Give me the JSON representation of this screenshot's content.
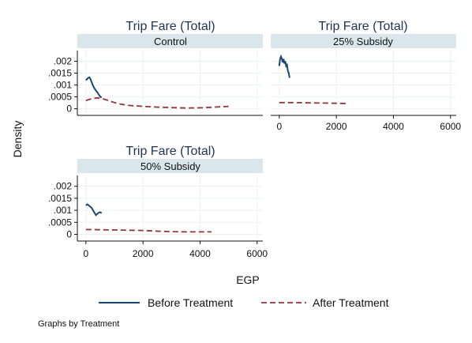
{
  "chart_data": {
    "type": "line",
    "panels": [
      {
        "title": "Trip Fare (Total)",
        "strip": "Control",
        "series": [
          {
            "name": "Before Treatment",
            "points": [
              [
                0,
                0.0012
              ],
              [
                40,
                0.00125
              ],
              [
                80,
                0.0013
              ],
              [
                120,
                0.00132
              ],
              [
                160,
                0.00125
              ],
              [
                200,
                0.00112
              ],
              [
                240,
                0.001
              ],
              [
                280,
                0.0009
              ],
              [
                320,
                0.00082
              ],
              [
                360,
                0.00075
              ],
              [
                400,
                0.0007
              ],
              [
                450,
                0.0006
              ],
              [
                500,
                0.00052
              ],
              [
                550,
                0.00047
              ]
            ]
          },
          {
            "name": "After Treatment",
            "points": [
              [
                0,
                0.00035
              ],
              [
                200,
                0.00042
              ],
              [
                400,
                0.00046
              ],
              [
                600,
                0.00042
              ],
              [
                800,
                0.00034
              ],
              [
                1000,
                0.00026
              ],
              [
                1200,
                0.0002
              ],
              [
                1500,
                0.00014
              ],
              [
                2000,
                0.0001
              ],
              [
                2500,
                7e-05
              ],
              [
                3000,
                5e-05
              ],
              [
                3500,
                3e-05
              ],
              [
                4000,
                4e-05
              ],
              [
                4500,
                7e-05
              ],
              [
                5000,
                0.0001
              ]
            ]
          }
        ]
      },
      {
        "title": "Trip Fare (Total)",
        "strip": "25% Subsidy",
        "series": [
          {
            "name": "Before Treatment",
            "points": [
              [
                0,
                0.0018
              ],
              [
                30,
                0.0021
              ],
              [
                60,
                0.0022
              ],
              [
                90,
                0.0021
              ],
              [
                120,
                0.00195
              ],
              [
                150,
                0.0021
              ],
              [
                180,
                0.0019
              ],
              [
                210,
                0.002
              ],
              [
                240,
                0.0018
              ],
              [
                270,
                0.00185
              ],
              [
                300,
                0.0016
              ],
              [
                330,
                0.0015
              ],
              [
                360,
                0.0013
              ]
            ]
          },
          {
            "name": "After Treatment",
            "points": [
              [
                0,
                0.00026
              ],
              [
                500,
                0.00026
              ],
              [
                1000,
                0.00025
              ],
              [
                1500,
                0.00024
              ],
              [
                2000,
                0.00023
              ],
              [
                2400,
                0.00022
              ]
            ]
          }
        ]
      },
      {
        "title": "Trip Fare (Total)",
        "strip": "50% Subsidy",
        "series": [
          {
            "name": "Before Treatment",
            "points": [
              [
                0,
                0.0012
              ],
              [
                50,
                0.00125
              ],
              [
                100,
                0.0012
              ],
              [
                150,
                0.00115
              ],
              [
                200,
                0.0011
              ],
              [
                250,
                0.001
              ],
              [
                300,
                0.0009
              ],
              [
                350,
                0.0008
              ],
              [
                400,
                0.00085
              ],
              [
                450,
                0.0009
              ],
              [
                500,
                0.00092
              ],
              [
                550,
                0.00088
              ]
            ]
          },
          {
            "name": "After Treatment",
            "points": [
              [
                0,
                0.0002
              ],
              [
                500,
                0.00019
              ],
              [
                1000,
                0.00018
              ],
              [
                1500,
                0.00017
              ],
              [
                2000,
                0.00016
              ],
              [
                2500,
                0.00013
              ],
              [
                3000,
                0.00011
              ],
              [
                3500,
                0.0001
              ],
              [
                4000,
                0.0001
              ],
              [
                4400,
                0.0001
              ]
            ]
          }
        ]
      }
    ],
    "xlabel": "EGP",
    "ylabel": "Density",
    "xticks": [
      0,
      2000,
      4000,
      6000
    ],
    "yticks": [
      ".002",
      ".0015",
      ".001",
      ".0005",
      "0"
    ],
    "ytick_values": [
      0.002,
      0.0015,
      0.001,
      0.0005,
      0
    ],
    "xlim": [
      -300,
      6200
    ],
    "ylim": [
      -0.00028,
      0.00245
    ],
    "legend": [
      "Before Treatment",
      "After Treatment"
    ],
    "legend_placement": "bottom",
    "note": "Graphs by Treatment",
    "colors": {
      "before": "#1a476f",
      "after": "#90353b",
      "strip": "#d9e6eb",
      "grid": "#eaf2f3",
      "title": "#1f3352"
    },
    "grid": true
  }
}
